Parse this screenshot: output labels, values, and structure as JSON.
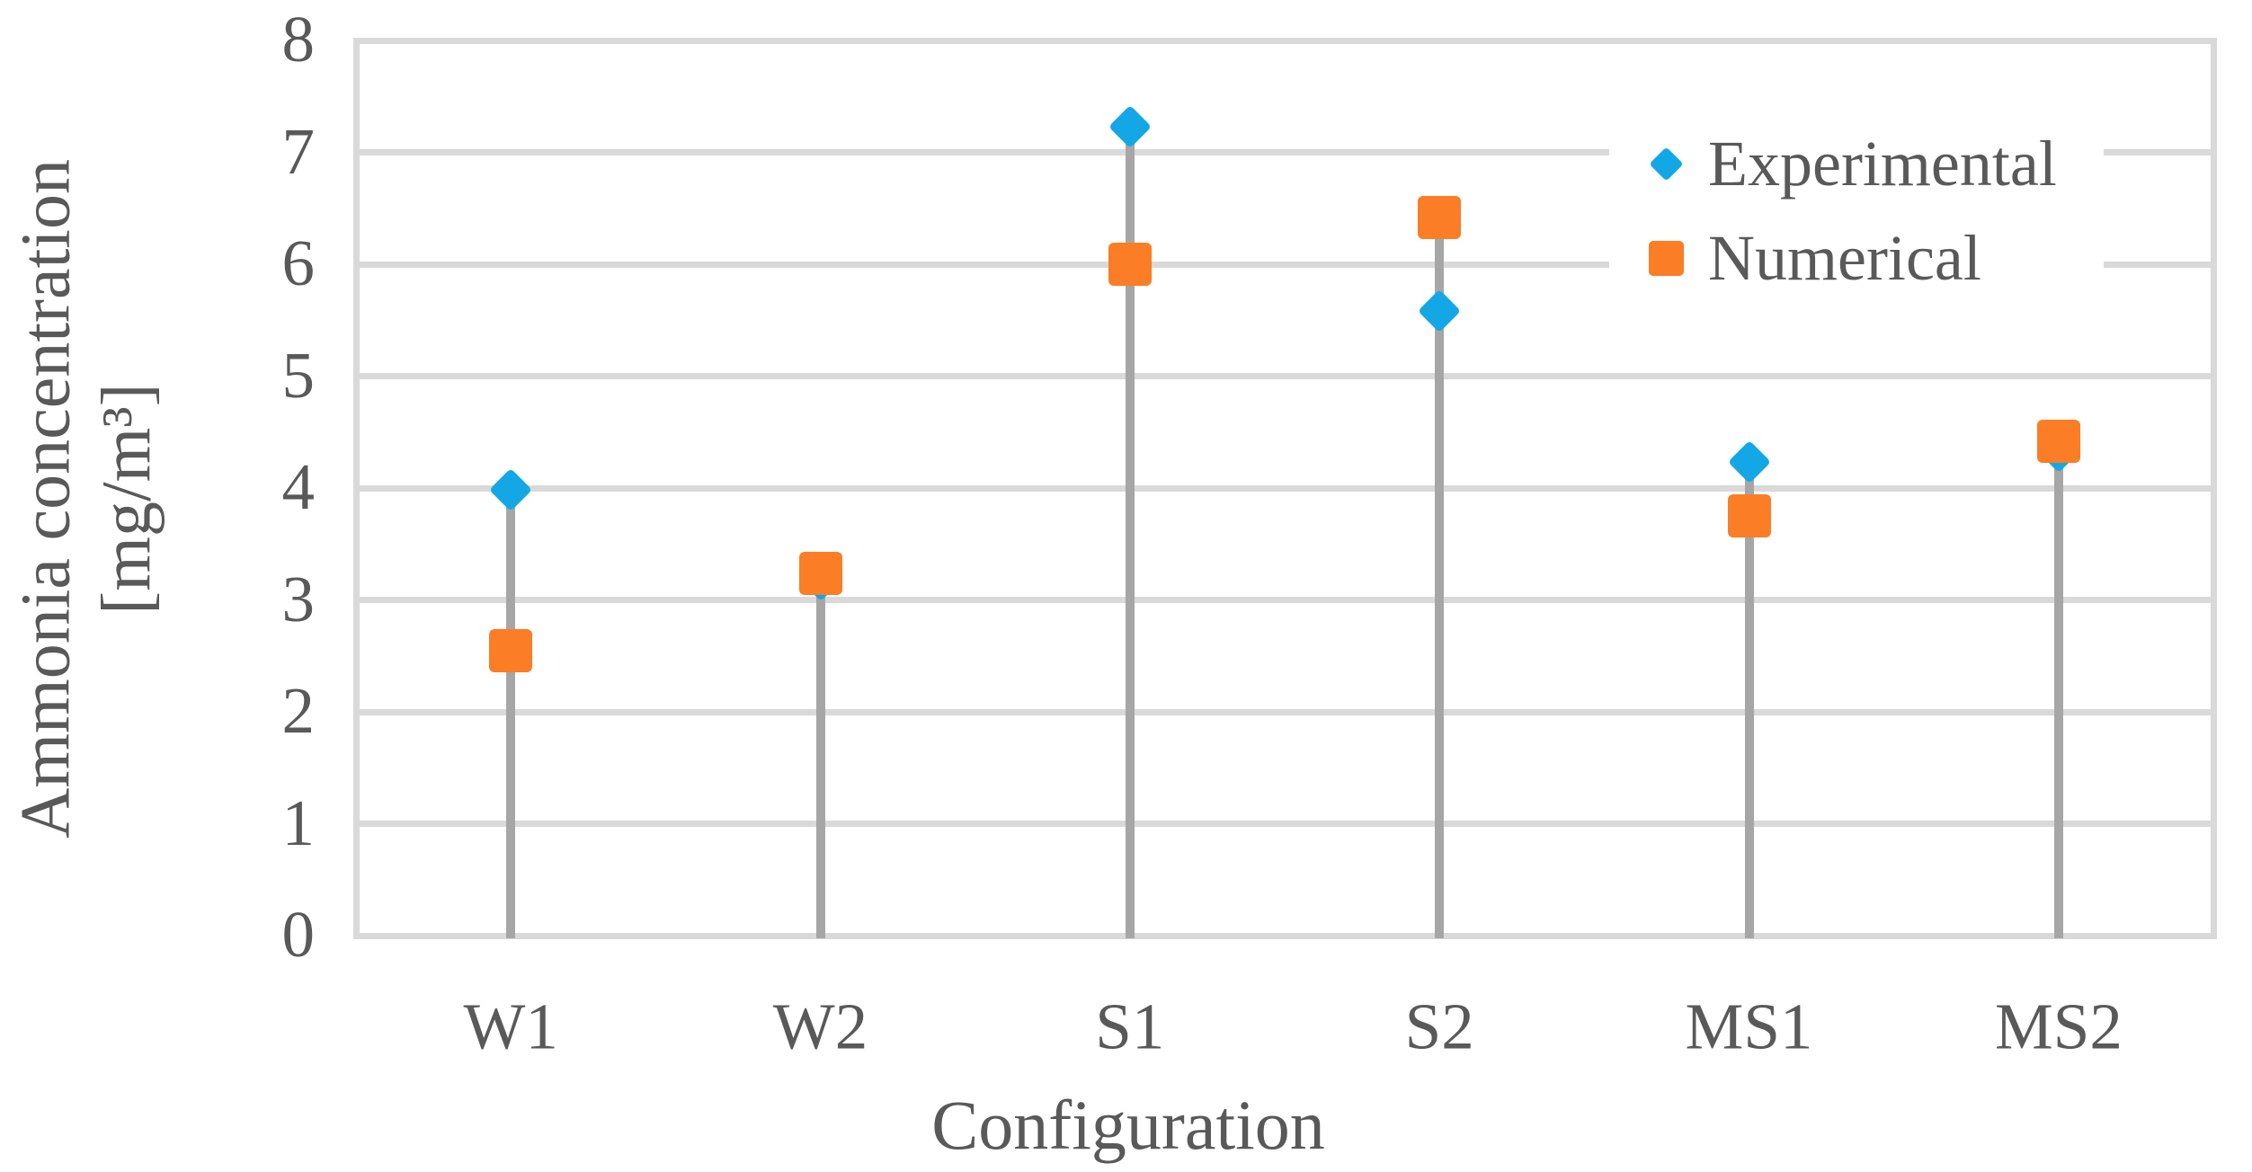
{
  "figure": {
    "y_axis_title_line1": "Ammonia concentration",
    "y_axis_title_line2": "[mg/m³]",
    "x_axis_title": "Configuration"
  },
  "chart_data": {
    "type": "scatter",
    "variant": "stem-lollipop-markers",
    "categories": [
      "W1",
      "W2",
      "S1",
      "S2",
      "MS1",
      "MS2"
    ],
    "series": [
      {
        "name": "Experimental",
        "marker": "diamond",
        "color": "#14A7E6",
        "values": [
          3.98,
          3.18,
          7.23,
          5.58,
          4.23,
          4.33
        ]
      },
      {
        "name": "Numerical",
        "marker": "square",
        "color": "#FB7D25",
        "values": [
          2.55,
          3.24,
          6.0,
          6.42,
          3.75,
          4.42
        ]
      }
    ],
    "title": "",
    "xlabel": "Configuration",
    "ylabel": "Ammonia concentration [mg/m³]",
    "ylim": [
      0,
      8
    ],
    "yticks": [
      0,
      1,
      2,
      3,
      4,
      5,
      6,
      7,
      8
    ],
    "grid": true,
    "legend_position": "top-right-inside",
    "grid_color": "#D9D9D9",
    "stem_color": "#A6A6A6",
    "text_color": "#595959",
    "background_color": "#FFFFFF"
  }
}
